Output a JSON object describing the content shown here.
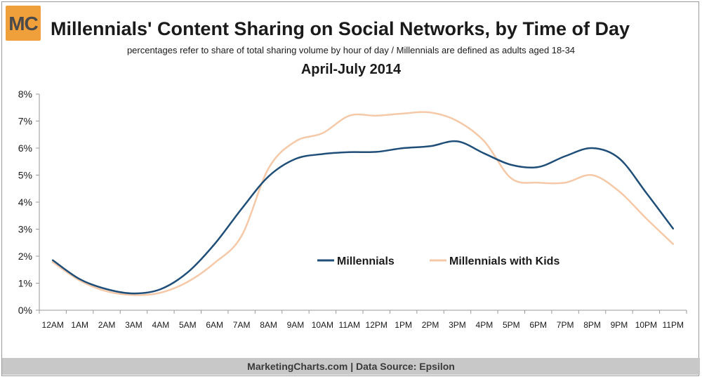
{
  "logo": {
    "text": "MC"
  },
  "header": {
    "title": "Millennials' Content Sharing on Social Networks, by Time of Day",
    "subtitle": "percentages refer to share of total sharing volume by hour of day / Millennials are defined as adults aged 18-34",
    "period": "April-July 2014"
  },
  "footer": {
    "text": "MarketingCharts.com | Data Source: Epsilon"
  },
  "chart_data": {
    "type": "line",
    "title": "Millennials' Content Sharing on Social Networks, by Time of Day",
    "subtitle": "April-July 2014",
    "xlabel": "",
    "ylabel": "",
    "categories": [
      "12AM",
      "1AM",
      "2AM",
      "3AM",
      "4AM",
      "5AM",
      "6AM",
      "7AM",
      "8AM",
      "9AM",
      "10AM",
      "11AM",
      "12PM",
      "1PM",
      "2PM",
      "3PM",
      "4PM",
      "5PM",
      "6PM",
      "7PM",
      "8PM",
      "9PM",
      "10PM",
      "11PM"
    ],
    "ylim": [
      0,
      8
    ],
    "yticks": [
      0,
      1,
      2,
      3,
      4,
      5,
      6,
      7,
      8
    ],
    "ytick_labels": [
      "0%",
      "1%",
      "2%",
      "3%",
      "4%",
      "5%",
      "6%",
      "7%",
      "8%"
    ],
    "grid": false,
    "legend_position": "center-right",
    "series": [
      {
        "name": "Millennials",
        "color": "#1f4e79",
        "values": [
          1.85,
          1.15,
          0.78,
          0.62,
          0.78,
          1.4,
          2.45,
          3.75,
          4.95,
          5.6,
          5.78,
          5.85,
          5.86,
          6.0,
          6.07,
          6.25,
          5.8,
          5.38,
          5.3,
          5.7,
          6.0,
          5.62,
          4.35,
          3.02
        ]
      },
      {
        "name": "Millennials with Kids",
        "color": "#f5c9a8",
        "values": [
          1.78,
          1.1,
          0.7,
          0.56,
          0.65,
          1.05,
          1.75,
          2.75,
          5.25,
          6.25,
          6.55,
          7.2,
          7.2,
          7.28,
          7.32,
          7.0,
          6.25,
          4.88,
          4.72,
          4.72,
          5.0,
          4.4,
          3.4,
          2.45
        ]
      }
    ]
  }
}
